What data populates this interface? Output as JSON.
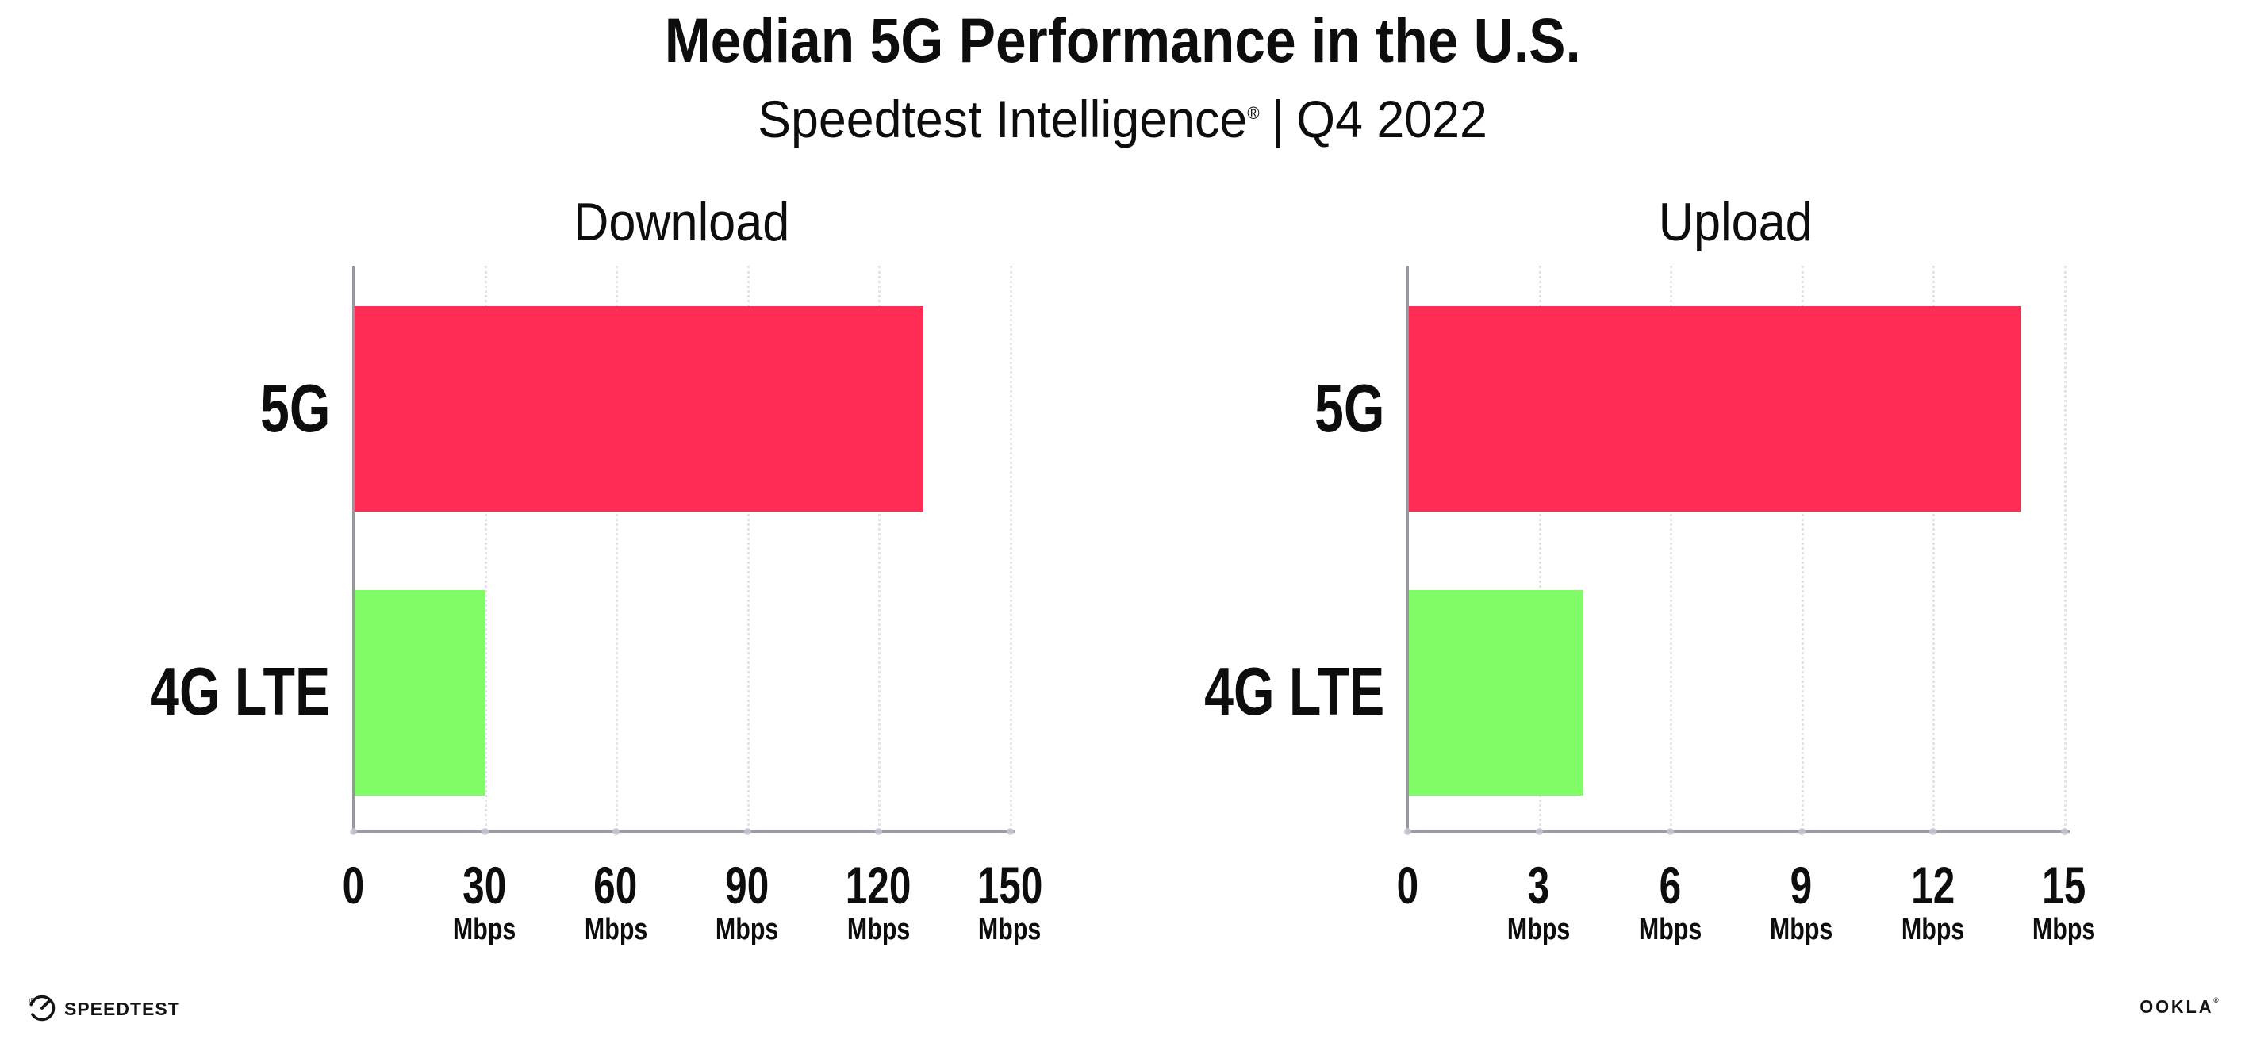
{
  "header": {
    "title": "Median 5G Performance in the U.S.",
    "subtitle_brand": "Speedtest Intelligence",
    "subtitle_reg_mark": "®",
    "subtitle_separator": "|",
    "subtitle_period": "Q4 2022"
  },
  "chart_data": [
    {
      "type": "bar",
      "orientation": "horizontal",
      "title": "Download",
      "categories": [
        "5G",
        "4G LTE"
      ],
      "values": [
        130,
        30
      ],
      "unit": "Mbps",
      "xlabel": "",
      "xlim": [
        0,
        150
      ],
      "xticks": [
        0,
        30,
        60,
        90,
        120,
        150
      ],
      "grid": "vertical-dotted",
      "legend": "none",
      "bar_colors": [
        "#ff2d55",
        "#80fc66"
      ]
    },
    {
      "type": "bar",
      "orientation": "horizontal",
      "title": "Upload",
      "categories": [
        "5G",
        "4G LTE"
      ],
      "values": [
        14,
        4
      ],
      "unit": "Mbps",
      "xlabel": "",
      "xlim": [
        0,
        15
      ],
      "xticks": [
        0,
        3,
        6,
        9,
        12,
        15
      ],
      "grid": "vertical-dotted",
      "legend": "none",
      "bar_colors": [
        "#ff2d55",
        "#80fc66"
      ]
    }
  ],
  "footer": {
    "speedtest_logo_text": "SPEEDTEST",
    "speedtest_reg_mark": "®",
    "ookla_logo_text": "OOKLA",
    "ookla_reg_mark": "®"
  },
  "colors": {
    "bar_5g": "#ff2d55",
    "bar_4g_lte": "#80fc66",
    "gridline": "#e2e2ec",
    "axis": "#9b9ba3",
    "text": "#0d0d0d"
  }
}
